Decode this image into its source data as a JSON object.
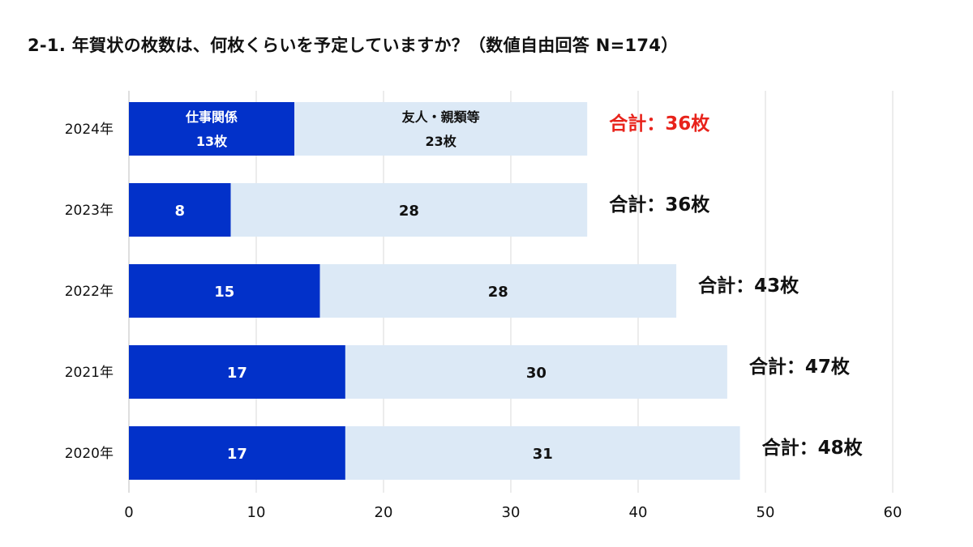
{
  "title": "2-1. 年賀状の枚数は、何枚くらいを予定していますか？（数値自由回答 N=174）",
  "colors": {
    "work": "#0231c9",
    "friends": "#dce9f6",
    "grid": "#d9d9d9",
    "highlight": "#e8231b",
    "text": "#111111"
  },
  "chart_data": {
    "type": "bar",
    "orientation": "horizontal",
    "stacked": true,
    "categories": [
      "2024年",
      "2023年",
      "2022年",
      "2021年",
      "2020年"
    ],
    "series": [
      {
        "name": "仕事関係",
        "values": [
          13,
          8,
          15,
          17,
          17
        ]
      },
      {
        "name": "友人・親類等",
        "values": [
          23,
          28,
          28,
          30,
          31
        ]
      }
    ],
    "segment_label_lines": [
      [
        "仕事関係",
        "13枚"
      ],
      [
        "友人・親類等",
        "23枚"
      ]
    ],
    "totals": [
      "合計：36枚",
      "合計：36枚",
      "合計：43枚",
      "合計：47枚",
      "合計：48枚"
    ],
    "highlight_category": "2024年",
    "xlim": [
      0,
      60
    ],
    "xticks": [
      0,
      10,
      20,
      30,
      40,
      50,
      60
    ],
    "grid": true,
    "legend": "none"
  }
}
